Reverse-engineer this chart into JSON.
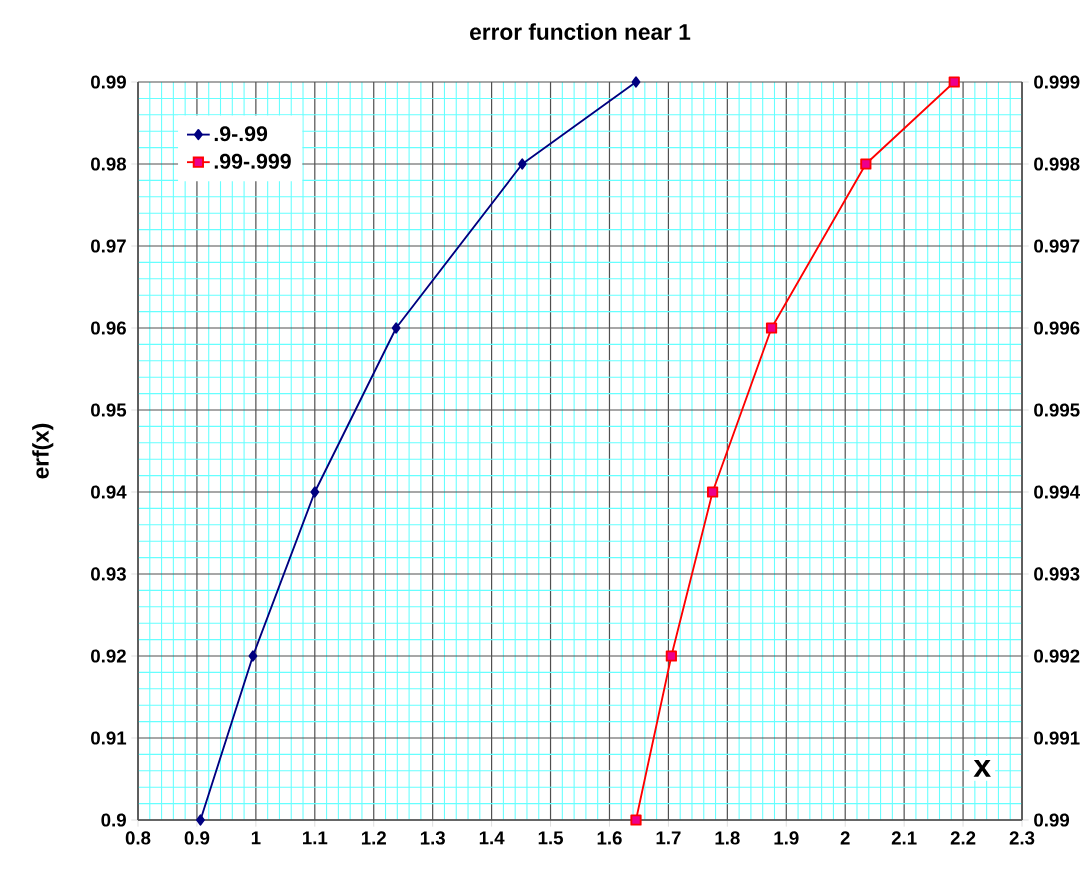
{
  "chart_data": {
    "type": "line",
    "title": "error function near 1",
    "xlabel": "x",
    "ylabel": "erf(x)",
    "xlim": [
      0.8,
      2.3
    ],
    "xticks": [
      0.8,
      {
        "value": 0.82,
        "label": null
      },
      {
        "value": 0.84,
        "label": null
      },
      {
        "value": 0.86,
        "label": null
      },
      {
        "value": 0.88,
        "label": null
      },
      0.9,
      {
        "value": 0.92,
        "label": null
      },
      {
        "value": 0.94,
        "label": null
      },
      {
        "value": 0.96,
        "label": null
      },
      {
        "value": 0.98,
        "label": null
      },
      1,
      {
        "value": 1.02,
        "label": null
      },
      {
        "value": 1.04,
        "label": null
      },
      {
        "value": 1.06,
        "label": null
      },
      {
        "value": 1.08,
        "label": null
      },
      1.1,
      {
        "value": 1.12,
        "label": null
      },
      {
        "value": 1.14,
        "label": null
      },
      {
        "value": 1.16,
        "label": null
      },
      {
        "value": 1.18,
        "label": null
      },
      1.2,
      {
        "value": 1.22,
        "label": null
      },
      {
        "value": 1.24,
        "label": null
      },
      {
        "value": 1.26,
        "label": null
      },
      {
        "value": 1.28,
        "label": null
      },
      1.3,
      {
        "value": 1.32,
        "label": null
      },
      {
        "value": 1.34,
        "label": null
      },
      {
        "value": 1.36,
        "label": null
      },
      {
        "value": 1.38,
        "label": null
      },
      1.4,
      {
        "value": 1.42,
        "label": null
      },
      {
        "value": 1.44,
        "label": null
      },
      {
        "value": 1.46,
        "label": null
      },
      {
        "value": 1.48,
        "label": null
      },
      1.5,
      {
        "value": 1.52,
        "label": null
      },
      {
        "value": 1.54,
        "label": null
      },
      {
        "value": 1.56,
        "label": null
      },
      {
        "value": 1.58,
        "label": null
      },
      1.6,
      {
        "value": 1.62,
        "label": null
      },
      {
        "value": 1.64,
        "label": null
      },
      {
        "value": 1.66,
        "label": null
      },
      {
        "value": 1.68,
        "label": null
      },
      1.7,
      {
        "value": 1.72,
        "label": null
      },
      {
        "value": 1.74,
        "label": null
      },
      {
        "value": 1.76,
        "label": null
      },
      {
        "value": 1.78,
        "label": null
      },
      1.8,
      {
        "value": 1.82,
        "label": null
      },
      {
        "value": 1.84,
        "label": null
      },
      {
        "value": 1.86,
        "label": null
      },
      {
        "value": 1.88,
        "label": null
      },
      1.9,
      {
        "value": 1.92,
        "label": null
      },
      {
        "value": 1.94,
        "label": null
      },
      {
        "value": 1.96,
        "label": null
      },
      {
        "value": 1.98,
        "label": null
      },
      2,
      {
        "value": 2.02,
        "label": null
      },
      {
        "value": 2.04,
        "label": null
      },
      {
        "value": 2.06,
        "label": null
      },
      {
        "value": 2.08,
        "label": null
      },
      2.1,
      {
        "value": 2.12,
        "label": null
      },
      {
        "value": 2.14,
        "label": null
      },
      {
        "value": 2.16,
        "label": null
      },
      {
        "value": 2.18,
        "label": null
      },
      2.2,
      {
        "value": 2.22,
        "label": null
      },
      {
        "value": 2.24,
        "label": null
      },
      {
        "value": 2.26,
        "label": null
      },
      {
        "value": 2.28,
        "label": null
      },
      2.3
    ],
    "ylim": [
      0.9,
      0.99
    ],
    "yticks": [
      0.9,
      {
        "value": 0.902,
        "label": null
      },
      {
        "value": 0.904,
        "label": null
      },
      {
        "value": 0.906,
        "label": null
      },
      {
        "value": 0.908,
        "label": null
      },
      0.91,
      {
        "value": 0.912,
        "label": null
      },
      {
        "value": 0.914,
        "label": null
      },
      {
        "value": 0.916,
        "label": null
      },
      {
        "value": 0.918,
        "label": null
      },
      0.92,
      {
        "value": 0.922,
        "label": null
      },
      {
        "value": 0.924,
        "label": null
      },
      {
        "value": 0.926,
        "label": null
      },
      {
        "value": 0.928,
        "label": null
      },
      0.93,
      {
        "value": 0.932,
        "label": null
      },
      {
        "value": 0.934,
        "label": null
      },
      {
        "value": 0.936,
        "label": null
      },
      {
        "value": 0.938,
        "label": null
      },
      0.94,
      {
        "value": 0.942,
        "label": null
      },
      {
        "value": 0.944,
        "label": null
      },
      {
        "value": 0.946,
        "label": null
      },
      {
        "value": 0.948,
        "label": null
      },
      0.95,
      {
        "value": 0.952,
        "label": null
      },
      {
        "value": 0.954,
        "label": null
      },
      {
        "value": 0.956,
        "label": null
      },
      {
        "value": 0.958,
        "label": null
      },
      0.96,
      {
        "value": 0.962,
        "label": null
      },
      {
        "value": 0.964,
        "label": null
      },
      {
        "value": 0.966,
        "label": null
      },
      {
        "value": 0.968,
        "label": null
      },
      0.97,
      {
        "value": 0.972,
        "label": null
      },
      {
        "value": 0.974,
        "label": null
      },
      {
        "value": 0.976,
        "label": null
      },
      {
        "value": 0.978,
        "label": null
      },
      0.98,
      {
        "value": 0.982,
        "label": null
      },
      {
        "value": 0.984,
        "label": null
      },
      {
        "value": 0.986,
        "label": null
      },
      {
        "value": 0.988,
        "label": null
      },
      0.99
    ],
    "y2lim": [
      0.99,
      0.999
    ],
    "y2ticks": [
      0.99,
      0.991,
      0.992,
      0.993,
      0.994,
      0.995,
      0.996,
      0.997,
      0.998,
      0.999
    ],
    "grid": true,
    "legend": "top left",
    "line_style": "solid",
    "series": [
      {
        "name": ".9-.99",
        "color": "#000080",
        "marker": "diamond",
        "x": [
          0.906,
          0.995,
          1.1,
          1.238,
          1.452,
          1.645
        ],
        "values": [
          0.9,
          0.92,
          0.94,
          0.96,
          0.98,
          0.99
        ]
      },
      {
        "name": ".99-.999",
        "color": "#ff0000",
        "marker": "square",
        "axis": "y2",
        "x": [
          1.645,
          1.705,
          1.775,
          1.875,
          2.035,
          2.185
        ],
        "values": [
          0.99,
          0.992,
          0.994,
          0.996,
          0.998,
          0.999
        ]
      }
    ]
  }
}
